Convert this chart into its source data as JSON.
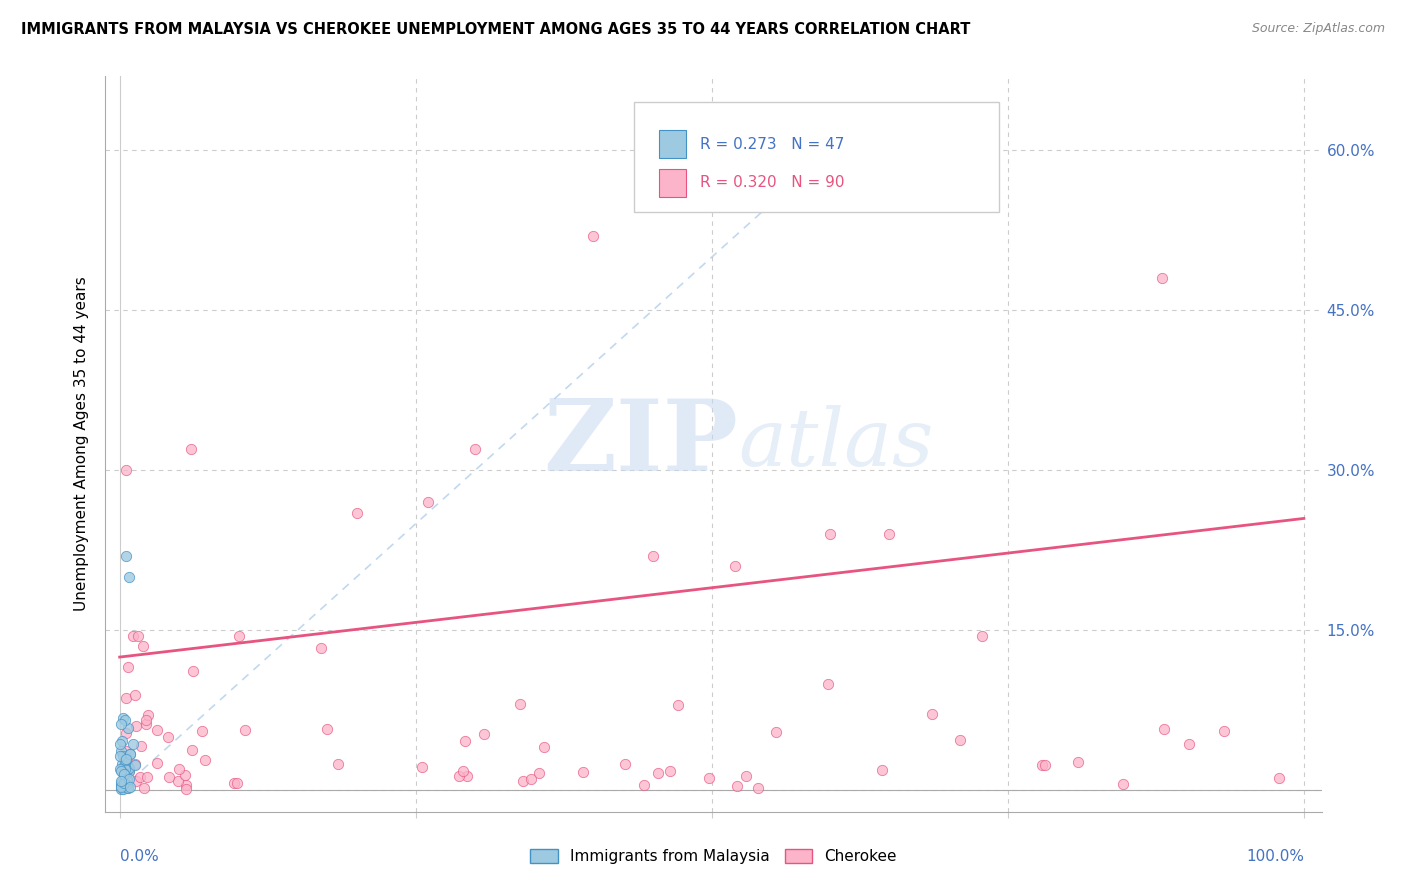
{
  "title": "IMMIGRANTS FROM MALAYSIA VS CHEROKEE UNEMPLOYMENT AMONG AGES 35 TO 44 YEARS CORRELATION CHART",
  "source": "Source: ZipAtlas.com",
  "ylabel": "Unemployment Among Ages 35 to 44 years",
  "r_malaysia": "0.273",
  "n_malaysia": "47",
  "r_cherokee": "0.320",
  "n_cherokee": "90",
  "color_malaysia": "#9ecae1",
  "color_malaysia_edge": "#4292c6",
  "color_cherokee": "#fbb4ca",
  "color_cherokee_edge": "#e75480",
  "color_regression": "#e75480",
  "color_diagonal": "#9ecae1",
  "watermark_zip_color": "#c8daf0",
  "watermark_atlas_color": "#c8daf0",
  "label_malaysia": "Immigrants from Malaysia",
  "label_cherokee": "Cherokee",
  "tick_color": "#4472c4",
  "legend_blue_color": "#4472c4",
  "legend_pink_color": "#e75480",
  "regression_intercept": 0.125,
  "regression_slope": 0.13,
  "xlim_min": 0.0,
  "xlim_max": 1.0,
  "ylim_min": 0.0,
  "ylim_max": 0.65,
  "yticks": [
    0.0,
    0.15,
    0.3,
    0.45,
    0.6
  ],
  "ytick_labels_right": [
    "",
    "15.0%",
    "30.0%",
    "45.0%",
    "60.0%"
  ]
}
